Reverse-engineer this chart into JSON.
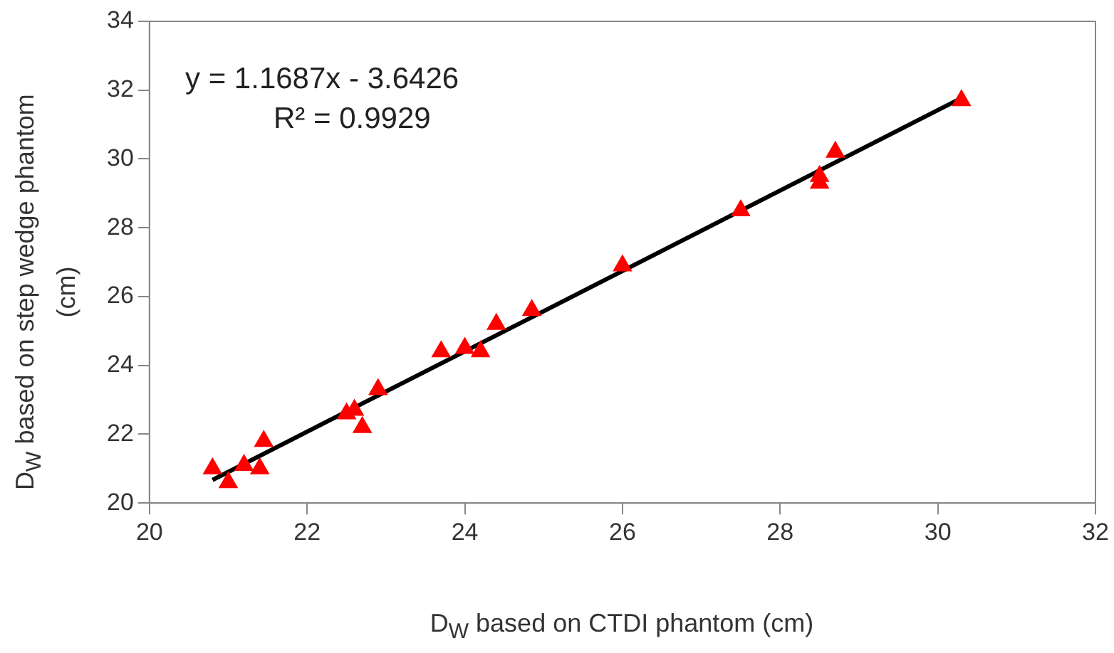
{
  "chart_data": {
    "type": "scatter",
    "xlabel": "D$_{W}$ based on CTDI phantom (cm)",
    "ylabel": "D$_{W}$ based on  step wedge phantom (cm)",
    "xlim": [
      20,
      32
    ],
    "xticks": [
      20,
      22,
      24,
      26,
      28,
      30,
      32
    ],
    "ylim": [
      20,
      34
    ],
    "yticks": [
      20,
      22,
      24,
      26,
      28,
      30,
      32,
      34
    ],
    "grid": false,
    "legend": false,
    "annotations": [
      {
        "text": "y = 1.1687x - 3.6426"
      },
      {
        "text": "R² = 0.9929"
      }
    ],
    "series": [
      {
        "type": "scatter",
        "marker": "triangle",
        "color": "#ff0000",
        "x": [
          20.8,
          21.0,
          21.2,
          21.4,
          21.45,
          22.5,
          22.6,
          22.7,
          22.9,
          23.7,
          24.0,
          24.2,
          24.4,
          24.85,
          26.0,
          27.5,
          28.5,
          28.5,
          28.7,
          30.3
        ],
        "values": [
          21.0,
          20.6,
          21.1,
          21.0,
          21.8,
          22.6,
          22.7,
          22.2,
          23.3,
          24.4,
          24.5,
          24.4,
          25.2,
          25.6,
          26.9,
          28.5,
          29.5,
          29.3,
          30.2,
          31.7
        ]
      },
      {
        "type": "line",
        "marker": "none",
        "line_style": "solid",
        "color": "#000000",
        "x": [
          20.8,
          30.3
        ],
        "values": [
          20.67,
          31.77
        ]
      }
    ]
  }
}
